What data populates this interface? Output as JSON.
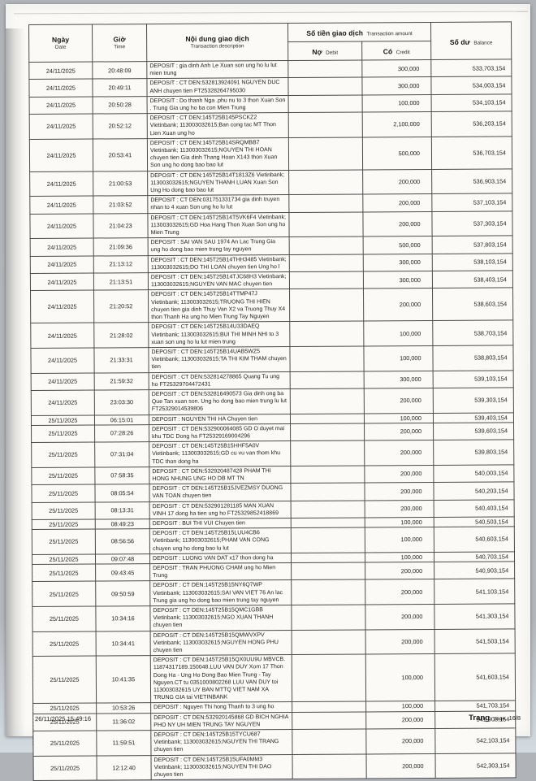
{
  "document": {
    "footer": {
      "generated_datetime": "26/11/2025 15:49:16",
      "page_label_vn": "Trang",
      "page_label_en": "page",
      "page_value": "16/8"
    }
  },
  "table": {
    "headers": {
      "date_vn": "Ngày",
      "date_en": "Date",
      "time_vn": "Giờ",
      "time_en": "Time",
      "desc_vn": "Nội dung giao dịch",
      "desc_en": "Transaction description",
      "amount_vn": "Số tiền giao dịch",
      "amount_en": "Transaction amount",
      "debit_vn": "Nợ",
      "debit_en": "Debit",
      "credit_vn": "Có",
      "credit_en": "Credit",
      "balance_vn": "Số dư",
      "balance_en": "Balance"
    },
    "rows": [
      {
        "date": "24/11/2025",
        "time": "20:48:09",
        "desc": "DEPOSIT : gia dinh Anh Le Xuan son ung ho lu lut mien trung",
        "debit": "",
        "credit": "300,000",
        "balance": "533,703,154"
      },
      {
        "date": "24/11/2025",
        "time": "20:49:11",
        "desc": "DEPOSIT : CT DEN:532813924091 NGUYEN DUC ANH chuyen tien FT25328264795030",
        "debit": "",
        "credit": "300,000",
        "balance": "534,003,154"
      },
      {
        "date": "24/11/2025",
        "time": "20:50:28",
        "desc": "DEPOSIT : Do thanh Nga .phu nu to 3 thon Xuan Son . Trung Gia ung ho ba con Mien Trung",
        "debit": "",
        "credit": "100,000",
        "balance": "534,103,154"
      },
      {
        "date": "24/11/2025",
        "time": "20:52:12",
        "desc": "DEPOSIT : CT DEN:145T25B145PSCKZ2 Vietinbank; 113003032615;Ban cong tac MT Thon Lien Xuan ung ho",
        "debit": "",
        "credit": "2,100,000",
        "balance": "536,203,154"
      },
      {
        "date": "24/11/2025",
        "time": "20:53:41",
        "desc": "DEPOSIT : CT DEN:145T25B14SRQMBB7 Vietinbank; 113003032615;NGUYEN THI HOAN chuyen tien Gia dinh Thang Hoan X143 thon Xuan Son ung ho dong bao bao lut",
        "debit": "",
        "credit": "500,000",
        "balance": "536,703,154"
      },
      {
        "date": "24/11/2025",
        "time": "21:00:53",
        "desc": "DEPOSIT : CT DEN:145T25B14T1813Z6 Vietinbank; 113003032615;NGUYEN THANH LUAN Xuan Son Ung Ho dong bao bao lut",
        "debit": "",
        "credit": "200,000",
        "balance": "536,903,154"
      },
      {
        "date": "24/11/2025",
        "time": "21:03:52",
        "desc": "DEPOSIT : CT DEN:031751331734 gia dinh truyen nhan to 4 xuan Son ung ho lu lut",
        "debit": "",
        "credit": "200,000",
        "balance": "537,103,154"
      },
      {
        "date": "24/11/2025",
        "time": "21:04:23",
        "desc": "DEPOSIT : CT DEN:145T25B14T5VK6F4 Vietinbank; 113003032615;GD Hoa Hang Thon Xuan Son ung ho Mien Trung",
        "debit": "",
        "credit": "200,000",
        "balance": "537,303,154"
      },
      {
        "date": "24/11/2025",
        "time": "21:09:36",
        "desc": "DEPOSIT : SAI VAN SAU 1974 An Lac Trung Gia ung ho dong bao mien trung tay nguyen",
        "debit": "",
        "credit": "500,000",
        "balance": "537,803,154"
      },
      {
        "date": "24/11/2025",
        "time": "21:13:12",
        "desc": "DEPOSIT : CT DEN:145T25B14THH3485 Vietinbank; 113003032615;DO THI LOAN chuyen tien Ung ho l",
        "debit": "",
        "credit": "300,000",
        "balance": "538,103,154"
      },
      {
        "date": "24/11/2025",
        "time": "21:13:51",
        "desc": "DEPOSIT : CT DEN:145T25B14TJC68H3 Vietinbank; 113003032615;NGUYEN VAN MAC chuyen tien",
        "debit": "",
        "credit": "300,000",
        "balance": "538,403,154"
      },
      {
        "date": "24/11/2025",
        "time": "21:20:52",
        "desc": "DEPOSIT : CT DEN:145T25B14TTMP47J Vietinbank; 113003032615;TRUONG THI HIEN chuyen tien gia dinh Thuy Van X2 va Truong Thuy X4 thon Thanh Ha ung ho Mien Trung Tay Nguyen",
        "debit": "",
        "credit": "200,000",
        "balance": "538,603,154"
      },
      {
        "date": "24/11/2025",
        "time": "21:28:02",
        "desc": "DEPOSIT : CT DEN:145T25B14U33DAEQ Vietinbank; 113003032615;BUI THI MINH NHI to 3 xuan son ung ho lu lut mien trung",
        "debit": "",
        "credit": "100,000",
        "balance": "538,703,154"
      },
      {
        "date": "24/11/2025",
        "time": "21:33:31",
        "desc": "DEPOSIT : CT DEN:145T25B14UAB5WZ5 Vietinbank; 113003032615;TA THI KIM THAM chuyen tien",
        "debit": "",
        "credit": "100,000",
        "balance": "538,803,154"
      },
      {
        "date": "24/11/2025",
        "time": "21:59:32",
        "desc": "DEPOSIT : CT DEN:532814278865 Quang Tu ung ho FT25329704472431",
        "debit": "",
        "credit": "300,000",
        "balance": "539,103,154"
      },
      {
        "date": "24/11/2025",
        "time": "23:03:30",
        "desc": "DEPOSIT : CT DEN:532816490573 Gia dinh ong ba Que Tan xuan son. Ung ho dong bao mien trung lu lut FT25329014539806",
        "debit": "",
        "credit": "200,000",
        "balance": "539,303,154"
      },
      {
        "date": "25/11/2025",
        "time": "06:15:01",
        "desc": "DEPOSIT : NGUYEN THI HA Chuyen tien",
        "debit": "",
        "credit": "100,000",
        "balance": "539,403,154"
      },
      {
        "date": "25/11/2025",
        "time": "07:28:26",
        "desc": "DEPOSIT : CT DEN:532900064085 GD O duyet mai khu TDC Dong ha FT25329169004296",
        "debit": "",
        "credit": "200,000",
        "balance": "539,603,154"
      },
      {
        "date": "25/11/2025",
        "time": "07:31:04",
        "desc": "DEPOSIT : CT DEN:145T25B15HHF5A0V Vietinbank; 113003032615;GD cu vu van thom khu TDC thon dong ha",
        "debit": "",
        "credit": "200,000",
        "balance": "539,803,154"
      },
      {
        "date": "25/11/2025",
        "time": "07:58:35",
        "desc": "DEPOSIT : CT DEN:532920487428 PHAM THI HONG NHUNG UNG HO DB MT TN",
        "debit": "",
        "credit": "200,000",
        "balance": "540,003,154"
      },
      {
        "date": "25/11/2025",
        "time": "08:05:54",
        "desc": "DEPOSIT : CT DEN:145T25B15JVEZMSY DUONG VAN TOAN chuyen tien",
        "debit": "",
        "credit": "200,000",
        "balance": "540,203,154"
      },
      {
        "date": "25/11/2025",
        "time": "08:13:31",
        "desc": "DEPOSIT : CT DEN:532901281185 MAN XUAN VINH 17 dong ha tien ung ho FT25329852418869",
        "debit": "",
        "credit": "200,000",
        "balance": "540,403,154"
      },
      {
        "date": "25/11/2025",
        "time": "08:49:23",
        "desc": "DEPOSIT : BUI THI VUI Chuyen tien",
        "debit": "",
        "credit": "100,000",
        "balance": "540,503,154"
      },
      {
        "date": "25/11/2025",
        "time": "08:56:56",
        "desc": "DEPOSIT : CT DEN:145T25B15LUU4CB6 Vietinbank; 113003032615;PHAM VAN CONG  chuyen ung ho dong bao lu lut",
        "debit": "",
        "credit": "100,000",
        "balance": "540,603,154"
      },
      {
        "date": "25/11/2025",
        "time": "09:07:48",
        "desc": "DEPOSIT : LUONG VAN DAT x17 thon dong ha",
        "debit": "",
        "credit": "100,000",
        "balance": "540,703,154"
      },
      {
        "date": "25/11/2025",
        "time": "09:43:45",
        "desc": "DEPOSIT : TRAN PHUONG CHAM ung ho Mien Trung",
        "debit": "",
        "credit": "200,000",
        "balance": "540,903,154"
      },
      {
        "date": "25/11/2025",
        "time": "09:50:59",
        "desc": "DEPOSIT : CT DEN:145T25B15NY6Q7WP Vietinbank; 113003032615;SAI VAN VIET 76 An lac Trung gia ung ho dong bao mien trung tay nguyen",
        "debit": "",
        "credit": "200,000",
        "balance": "541,103,154"
      },
      {
        "date": "25/11/2025",
        "time": "10:34:16",
        "desc": "DEPOSIT : CT DEN:145T25B15QMC1GBB Vietinbank; 113003032615;NGO XUAN THANH chuyen tien",
        "debit": "",
        "credit": "200,000",
        "balance": "541,303,154"
      },
      {
        "date": "25/11/2025",
        "time": "10:34:41",
        "desc": "DEPOSIT : CT DEN:145T25B15QMWVXPV Vietinbank; 113003032615;NGUYEN HONG PHU chuyen tien",
        "debit": "",
        "credit": "200,000",
        "balance": "541,503,154"
      },
      {
        "date": "25/11/2025",
        "time": "10:41:35",
        "desc": "DEPOSIT : CT DEN:145T25B15QX0UU9U MBVCB. 11874317189.150048.LUU VAN DUY Xom 17 Thon Dong Ha - Ung Ho Dong Bao Mien Trung - Tay Nguyen.CT tu 0351000802268 LUU VAN DUY toi 113003032615 UY BAN MTTQ VIET NAM XA TRUNG GIA tai VIETINBANK",
        "debit": "",
        "credit": "100,000",
        "balance": "541,603,154"
      },
      {
        "date": "25/11/2025",
        "time": "10:53:26",
        "desc": "DEPOSIT : Nguyen Thi hong Thanh to 3 ung ho",
        "debit": "",
        "credit": "100,000",
        "balance": "541,703,154"
      },
      {
        "date": "25/11/2025",
        "time": "11:36:02",
        "desc": "DEPOSIT : CT DEN:532920145868 GD BICH NGHIA PHO NY UH MIEN TRUNG TAY NGUYEN",
        "debit": "",
        "credit": "200,000",
        "balance": "541,903,154"
      },
      {
        "date": "25/11/2025",
        "time": "11:59:51",
        "desc": "DEPOSIT : CT DEN:145T25B15TYCU687 Vietinbank; 113003032615;NGUYEN THI TRANG chuyen tien",
        "debit": "",
        "credit": "200,000",
        "balance": "542,103,154"
      },
      {
        "date": "25/11/2025",
        "time": "12:12:40",
        "desc": "DEPOSIT : CT DEN:145T25B15UFA0MM3 Vietinbank; 113003032615;NGUYEN THI DAO chuyen tien",
        "debit": "",
        "credit": "200,000",
        "balance": "542,303,154"
      }
    ]
  }
}
